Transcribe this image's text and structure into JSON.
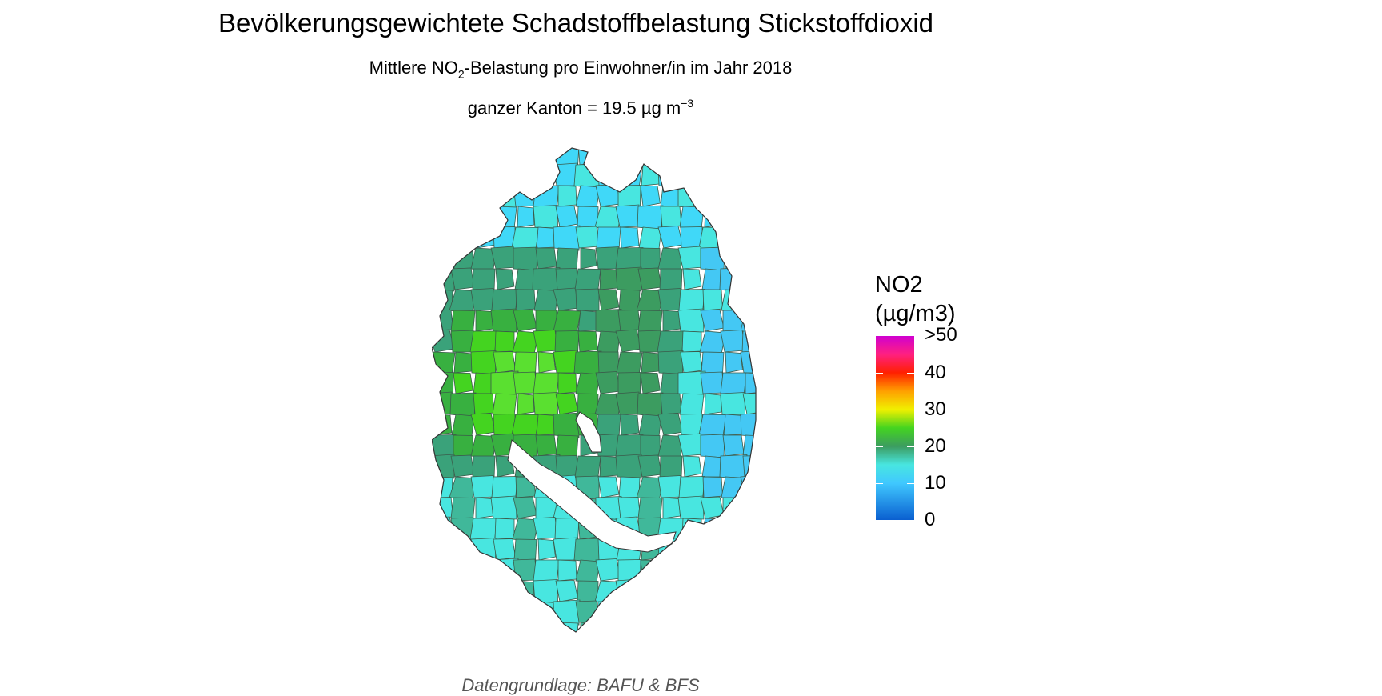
{
  "header": {
    "title": "Bevölkerungsgewichtete Schadstoffbelastung Stickstoffdioxid",
    "subtitle_pre": "Mittlere NO",
    "subtitle_sub": "2",
    "subtitle_post": "-Belastung pro Einwohner/in im Jahr 2018",
    "canton_pre": "ganzer Kanton = 19.5 µg m",
    "canton_sup": "−3"
  },
  "legend": {
    "title_line1": "NO2",
    "title_line2": "(µg/m3)",
    "labels": [
      ">50",
      "40",
      "30",
      "20",
      "10",
      "0"
    ],
    "gradient_stops": [
      {
        "value": 0,
        "color": "#0a5fd0"
      },
      {
        "value": 10,
        "color": "#40c8ff"
      },
      {
        "value": 15,
        "color": "#48e6e0"
      },
      {
        "value": 20,
        "color": "#3c9c60"
      },
      {
        "value": 25,
        "color": "#44d420"
      },
      {
        "value": 30,
        "color": "#f0f000"
      },
      {
        "value": 35,
        "color": "#ffa000"
      },
      {
        "value": 40,
        "color": "#ff2000"
      },
      {
        "value": 45,
        "color": "#ff2080"
      },
      {
        "value": 50,
        "color": "#d000d0"
      }
    ]
  },
  "caption": "Datengrundlage: BAFU & BFS"
}
